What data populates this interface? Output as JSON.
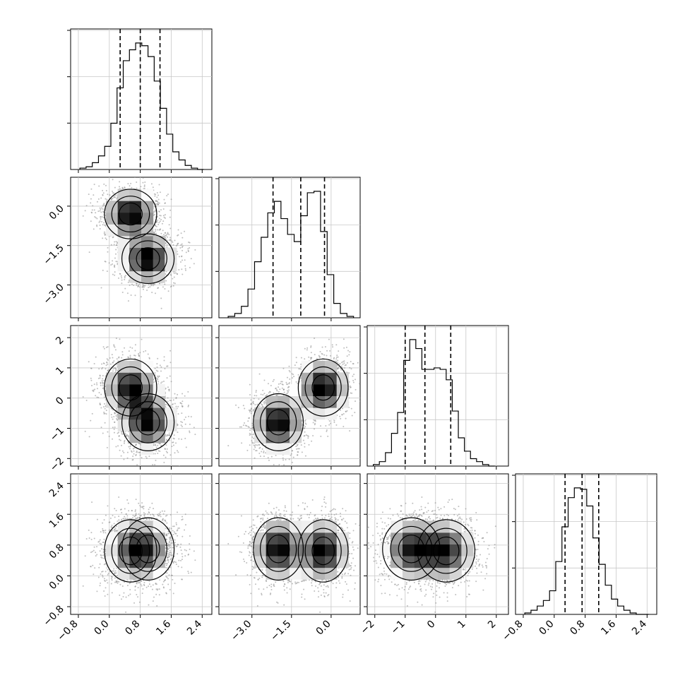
{
  "chart_data": {
    "type": "corner",
    "title": "",
    "grid": true,
    "panel_colors": {
      "frame": "#000000",
      "grid": "#c8c8c8",
      "points": "#8a8a8a",
      "quantile_line": "#000000"
    },
    "parameters": [
      {
        "label": "",
        "range": [
          -1.0,
          2.65
        ],
        "ticks": [
          -0.8,
          0.0,
          0.8,
          1.6,
          2.4
        ],
        "tick_labels": [
          "−0.8",
          "0.0",
          "0.8",
          "1.6",
          "2.4"
        ],
        "quantiles": [
          0.28,
          0.8,
          1.31
        ]
      },
      {
        "label": "",
        "range": [
          -4.25,
          1.1
        ],
        "ticks": [
          -3.0,
          -1.5,
          0.0
        ],
        "tick_labels": [
          "−3.0",
          "−1.5",
          "0.0"
        ],
        "quantiles": [
          -2.2,
          -1.15,
          -0.25
        ]
      },
      {
        "label": "",
        "range": [
          -2.25,
          2.4
        ],
        "ticks": [
          -2,
          -1,
          0,
          1,
          2
        ],
        "tick_labels": [
          "−2",
          "−1",
          "0",
          "1",
          "2"
        ],
        "quantiles": [
          -1.0,
          -0.35,
          0.5
        ]
      },
      {
        "label": "",
        "range": [
          -1.0,
          2.65
        ],
        "ticks": [
          -0.8,
          0.0,
          0.8,
          1.6,
          2.4
        ],
        "tick_labels": [
          "−0.8",
          "0.0",
          "0.8",
          "1.6",
          "2.4"
        ],
        "quantiles": [
          0.28,
          0.72,
          1.15
        ]
      }
    ],
    "histograms": [
      {
        "param": 0,
        "bins": [
          -0.76,
          -0.6,
          -0.44,
          -0.28,
          -0.12,
          0.04,
          0.2,
          0.36,
          0.52,
          0.68,
          0.84,
          1.0,
          1.16,
          1.32,
          1.48,
          1.64,
          1.8,
          1.96,
          2.12,
          2.28
        ],
        "counts": [
          0.01,
          0.02,
          0.05,
          0.1,
          0.17,
          0.34,
          0.6,
          0.8,
          0.88,
          0.93,
          0.91,
          0.83,
          0.65,
          0.45,
          0.26,
          0.13,
          0.07,
          0.03,
          0.01,
          0.0
        ]
      },
      {
        "param": 1,
        "bins": [
          -3.9,
          -3.65,
          -3.4,
          -3.15,
          -2.9,
          -2.65,
          -2.4,
          -2.15,
          -1.9,
          -1.65,
          -1.4,
          -1.15,
          -0.9,
          -0.65,
          -0.4,
          -0.15,
          0.1,
          0.35,
          0.6
        ],
        "counts": [
          0.01,
          0.03,
          0.08,
          0.2,
          0.39,
          0.56,
          0.73,
          0.81,
          0.69,
          0.58,
          0.53,
          0.71,
          0.87,
          0.88,
          0.6,
          0.3,
          0.1,
          0.03,
          0.01
        ]
      },
      {
        "param": 2,
        "bins": [
          -2.05,
          -1.85,
          -1.65,
          -1.45,
          -1.25,
          -1.05,
          -0.85,
          -0.65,
          -0.45,
          -0.25,
          -0.05,
          0.15,
          0.35,
          0.55,
          0.75,
          0.95,
          1.15,
          1.35,
          1.55,
          1.75
        ],
        "counts": [
          0.01,
          0.03,
          0.09,
          0.22,
          0.36,
          0.71,
          0.85,
          0.79,
          0.65,
          0.65,
          0.66,
          0.65,
          0.58,
          0.37,
          0.19,
          0.1,
          0.05,
          0.03,
          0.01,
          0.0
        ]
      },
      {
        "param": 3,
        "bins": [
          -0.76,
          -0.6,
          -0.44,
          -0.28,
          -0.12,
          0.04,
          0.2,
          0.36,
          0.52,
          0.68,
          0.84,
          1.0,
          1.16,
          1.32,
          1.48,
          1.64,
          1.8,
          1.96,
          2.12,
          2.28
        ],
        "counts": [
          0.01,
          0.03,
          0.06,
          0.1,
          0.17,
          0.38,
          0.63,
          0.84,
          0.91,
          0.9,
          0.78,
          0.55,
          0.36,
          0.21,
          0.11,
          0.06,
          0.03,
          0.01,
          0.0,
          0.0
        ]
      }
    ],
    "density": {
      "sample_sd": [
        0.45,
        0.6,
        0.75,
        0.45
      ],
      "components": [
        {
          "weight": 0.5,
          "mean": [
            0.55,
            -0.3,
            0.35,
            0.65
          ]
        },
        {
          "weight": 0.5,
          "mean": [
            1.0,
            -2.0,
            -0.8,
            0.7
          ]
        }
      ],
      "component_sd": [
        0.3,
        0.42,
        0.42,
        0.42
      ],
      "contour_levels": [
        "0.5 sigma",
        "1 sigma",
        "1.5 sigma",
        "2 sigma"
      ]
    },
    "pairs": [
      {
        "x": 0,
        "y": 1
      },
      {
        "x": 0,
        "y": 2
      },
      {
        "x": 1,
        "y": 2
      },
      {
        "x": 0,
        "y": 3
      },
      {
        "x": 1,
        "y": 3
      },
      {
        "x": 2,
        "y": 3
      }
    ]
  }
}
